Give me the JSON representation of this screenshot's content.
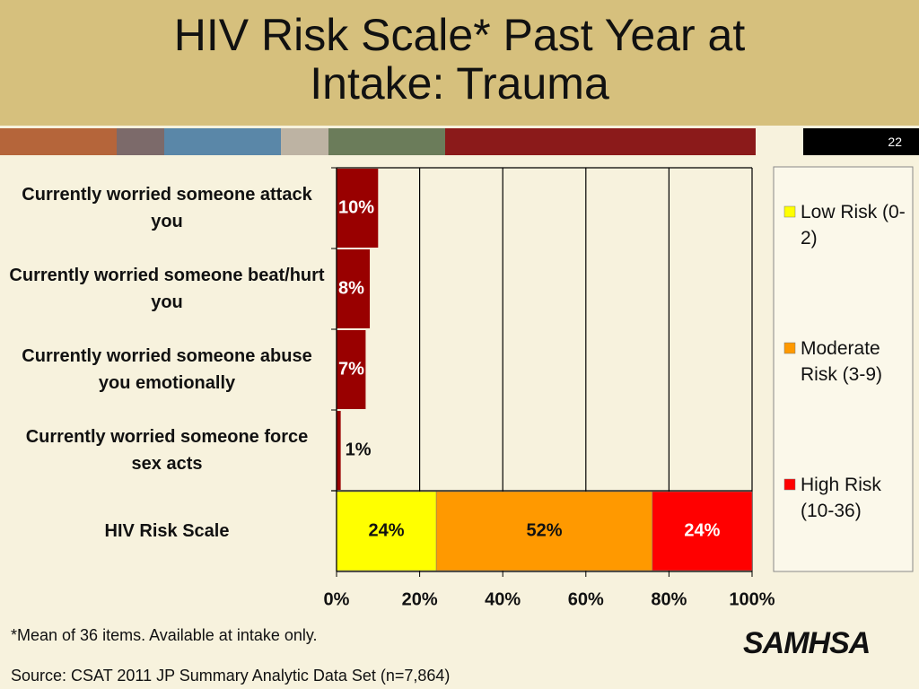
{
  "header": {
    "title": "HIV Risk Scale* Past Year at Intake: Trauma",
    "page_number": "22"
  },
  "chart_data": {
    "type": "stacked-bar",
    "orientation": "horizontal",
    "categories": [
      "Currently worried someone attack you",
      "Currently worried someone beat/hurt you",
      "Currently worried someone abuse you emotionally",
      "Currently worried someone force sex acts",
      "HIV Risk Scale"
    ],
    "bars": {
      "color": "#990000",
      "values": [
        10,
        8,
        7,
        1,
        null
      ],
      "value_labels": [
        "10%",
        "8%",
        "7%",
        "1%",
        null
      ]
    },
    "series": [
      {
        "name": "Low Risk (0-2)",
        "color": "#ffff00",
        "values": [
          null,
          null,
          null,
          null,
          24
        ],
        "value_labels": [
          null,
          null,
          null,
          null,
          "24%"
        ]
      },
      {
        "name": "Moderate Risk (3-9)",
        "color": "#ff9900",
        "values": [
          null,
          null,
          null,
          null,
          52
        ],
        "value_labels": [
          null,
          null,
          null,
          null,
          "52%"
        ]
      },
      {
        "name": "High Risk (10-36)",
        "color": "#ff0000",
        "values": [
          null,
          null,
          null,
          null,
          24
        ],
        "value_labels": [
          null,
          null,
          null,
          null,
          "24%"
        ]
      }
    ],
    "xlim": [
      0,
      100
    ],
    "xticks": [
      {
        "value": 0,
        "label": "0%"
      },
      {
        "value": 20,
        "label": "20%"
      },
      {
        "value": 40,
        "label": "40%"
      },
      {
        "value": 60,
        "label": "60%"
      },
      {
        "value": 80,
        "label": "80%"
      },
      {
        "value": 100,
        "label": "100%"
      }
    ],
    "grid": true,
    "legend": "right"
  },
  "footer": {
    "note": "*Mean of 36 items. Available at intake only.",
    "source": "Source: CSAT 2011 JP Summary Analytic Data Set (n=7,864)",
    "logo": "SAMHSA"
  }
}
